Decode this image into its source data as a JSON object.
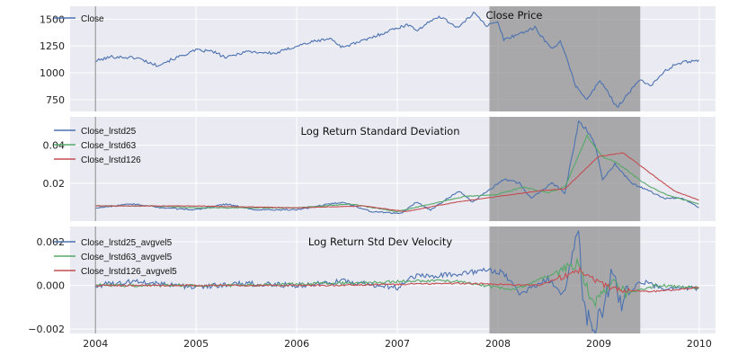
{
  "chart_data": [
    {
      "type": "line",
      "title": "Close Price",
      "x_range": [
        "2003-10-01",
        "2010-03-01"
      ],
      "ylim": [
        640,
        1620
      ],
      "yticks": [
        750,
        1000,
        1250,
        1500
      ],
      "grid": true,
      "legend_position": "top-left",
      "shaded_region": [
        "2007-12-01",
        "2009-06-01"
      ],
      "vline": "2004-01-01",
      "series": [
        {
          "name": "Close",
          "color": "#4C72B0",
          "points": [
            [
              "2004-01-02",
              1110
            ],
            [
              "2004-03-01",
              1150
            ],
            [
              "2004-06-01",
              1140
            ],
            [
              "2004-08-10",
              1070
            ],
            [
              "2004-10-01",
              1120
            ],
            [
              "2004-12-31",
              1210
            ],
            [
              "2005-03-01",
              1200
            ],
            [
              "2005-04-20",
              1140
            ],
            [
              "2005-07-01",
              1200
            ],
            [
              "2005-10-15",
              1180
            ],
            [
              "2005-12-31",
              1250
            ],
            [
              "2006-03-01",
              1290
            ],
            [
              "2006-05-01",
              1320
            ],
            [
              "2006-06-15",
              1240
            ],
            [
              "2006-09-01",
              1300
            ],
            [
              "2006-12-31",
              1420
            ],
            [
              "2007-02-20",
              1450
            ],
            [
              "2007-03-10",
              1390
            ],
            [
              "2007-06-01",
              1530
            ],
            [
              "2007-08-10",
              1420
            ],
            [
              "2007-10-09",
              1565
            ],
            [
              "2007-11-20",
              1440
            ],
            [
              "2007-12-31",
              1470
            ],
            [
              "2008-01-22",
              1310
            ],
            [
              "2008-05-15",
              1420
            ],
            [
              "2008-07-15",
              1220
            ],
            [
              "2008-08-15",
              1300
            ],
            [
              "2008-10-10",
              880
            ],
            [
              "2008-11-20",
              750
            ],
            [
              "2009-01-06",
              930
            ],
            [
              "2009-03-09",
              680
            ],
            [
              "2009-06-01",
              940
            ],
            [
              "2009-07-10",
              880
            ],
            [
              "2009-09-01",
              1020
            ],
            [
              "2009-10-15",
              1090
            ],
            [
              "2009-12-31",
              1120
            ]
          ]
        }
      ]
    },
    {
      "type": "line",
      "title": "Log Return Standard Deviation",
      "x_range": [
        "2003-10-01",
        "2010-03-01"
      ],
      "ylim": [
        0.0,
        0.055
      ],
      "yticks": [
        0.02,
        0.04
      ],
      "grid": true,
      "legend_position": "top-left",
      "shaded_region": [
        "2007-12-01",
        "2009-06-01"
      ],
      "vline": "2004-01-01",
      "series": [
        {
          "name": "Close_lrstd25",
          "color": "#4C72B0",
          "points": [
            [
              "2004-01-02",
              0.007
            ],
            [
              "2004-05-15",
              0.009
            ],
            [
              "2004-09-01",
              0.007
            ],
            [
              "2005-01-01",
              0.006
            ],
            [
              "2005-04-20",
              0.009
            ],
            [
              "2005-08-01",
              0.006
            ],
            [
              "2006-01-01",
              0.006
            ],
            [
              "2006-06-15",
              0.01
            ],
            [
              "2006-10-01",
              0.005
            ],
            [
              "2007-01-15",
              0.004
            ],
            [
              "2007-03-10",
              0.01
            ],
            [
              "2007-05-01",
              0.006
            ],
            [
              "2007-08-15",
              0.016
            ],
            [
              "2007-10-01",
              0.01
            ],
            [
              "2007-11-25",
              0.016
            ],
            [
              "2008-01-25",
              0.022
            ],
            [
              "2008-03-20",
              0.02
            ],
            [
              "2008-05-01",
              0.012
            ],
            [
              "2008-07-15",
              0.02
            ],
            [
              "2008-09-01",
              0.015
            ],
            [
              "2008-10-20",
              0.052
            ],
            [
              "2008-11-20",
              0.048
            ],
            [
              "2008-12-20",
              0.04
            ],
            [
              "2009-01-15",
              0.022
            ],
            [
              "2009-03-01",
              0.03
            ],
            [
              "2009-05-01",
              0.02
            ],
            [
              "2009-07-01",
              0.016
            ],
            [
              "2009-09-01",
              0.012
            ],
            [
              "2009-11-01",
              0.012
            ],
            [
              "2009-12-31",
              0.007
            ]
          ]
        },
        {
          "name": "Close_lrstd63",
          "color": "#55A868",
          "points": [
            [
              "2004-01-02",
              0.008
            ],
            [
              "2004-08-01",
              0.008
            ],
            [
              "2005-01-01",
              0.007
            ],
            [
              "2005-06-01",
              0.007
            ],
            [
              "2006-01-01",
              0.007
            ],
            [
              "2006-07-15",
              0.009
            ],
            [
              "2007-01-01",
              0.005
            ],
            [
              "2007-04-01",
              0.008
            ],
            [
              "2007-09-01",
              0.013
            ],
            [
              "2007-12-31",
              0.014
            ],
            [
              "2008-04-01",
              0.018
            ],
            [
              "2008-07-01",
              0.015
            ],
            [
              "2008-09-01",
              0.018
            ],
            [
              "2008-11-20",
              0.045
            ],
            [
              "2009-01-15",
              0.034
            ],
            [
              "2009-03-15",
              0.03
            ],
            [
              "2009-06-15",
              0.02
            ],
            [
              "2009-09-01",
              0.014
            ],
            [
              "2009-12-31",
              0.009
            ]
          ]
        },
        {
          "name": "Close_lrstd126",
          "color": "#C44E52",
          "points": [
            [
              "2004-01-02",
              0.008
            ],
            [
              "2004-12-31",
              0.008
            ],
            [
              "2005-12-31",
              0.007
            ],
            [
              "2006-09-01",
              0.008
            ],
            [
              "2007-02-01",
              0.005
            ],
            [
              "2007-08-01",
              0.01
            ],
            [
              "2007-12-31",
              0.013
            ],
            [
              "2008-06-01",
              0.016
            ],
            [
              "2008-09-01",
              0.017
            ],
            [
              "2008-12-31",
              0.034
            ],
            [
              "2009-04-01",
              0.036
            ],
            [
              "2009-07-01",
              0.026
            ],
            [
              "2009-10-01",
              0.016
            ],
            [
              "2009-12-31",
              0.011
            ]
          ]
        }
      ]
    },
    {
      "type": "line",
      "title": "Log Return Std Dev Velocity",
      "x_range": [
        "2003-10-01",
        "2010-03-01"
      ],
      "ylim": [
        -0.0022,
        0.0027
      ],
      "yticks": [
        -0.002,
        0.0,
        0.002
      ],
      "xticks": [
        "2004",
        "2005",
        "2006",
        "2007",
        "2008",
        "2009",
        "2010"
      ],
      "grid": true,
      "legend_position": "top-left",
      "shaded_region": [
        "2007-12-01",
        "2009-06-01"
      ],
      "vline": "2004-01-01",
      "series": [
        {
          "name": "Close_lrstd25_avgvel5",
          "color": "#4C72B0",
          "points": [
            [
              "2004-01-02",
              0.0
            ],
            [
              "2004-06-01",
              0.0002
            ],
            [
              "2005-01-01",
              -0.0001
            ],
            [
              "2005-06-01",
              0.0001
            ],
            [
              "2006-01-01",
              0.0
            ],
            [
              "2006-06-15",
              0.0002
            ],
            [
              "2007-01-01",
              -0.0001
            ],
            [
              "2007-03-01",
              0.0004
            ],
            [
              "2007-08-01",
              0.0005
            ],
            [
              "2007-11-15",
              0.0007
            ],
            [
              "2008-01-20",
              0.0006
            ],
            [
              "2008-03-20",
              -0.0004
            ],
            [
              "2008-07-01",
              0.0003
            ],
            [
              "2008-09-01",
              -0.0005
            ],
            [
              "2008-10-20",
              0.0024
            ],
            [
              "2008-11-10",
              -0.0012
            ],
            [
              "2008-12-15",
              -0.0019
            ],
            [
              "2009-01-05",
              -0.0015
            ],
            [
              "2009-02-20",
              0.0006
            ],
            [
              "2009-03-20",
              -0.0008
            ],
            [
              "2009-06-01",
              0.0002
            ],
            [
              "2009-09-01",
              -0.0002
            ],
            [
              "2009-12-31",
              -0.0001
            ]
          ]
        },
        {
          "name": "Close_lrstd63_avgvel5",
          "color": "#55A868",
          "points": [
            [
              "2004-01-02",
              0.0
            ],
            [
              "2005-06-01",
              0.0
            ],
            [
              "2006-06-01",
              0.0001
            ],
            [
              "2007-03-01",
              0.0002
            ],
            [
              "2007-08-01",
              0.0002
            ],
            [
              "2008-03-01",
              -0.0002
            ],
            [
              "2008-10-20",
              0.001
            ],
            [
              "2008-12-15",
              -0.0009
            ],
            [
              "2009-02-20",
              0.0002
            ],
            [
              "2009-04-15",
              -0.0004
            ],
            [
              "2009-08-01",
              0.0
            ],
            [
              "2009-12-31",
              -0.0001
            ]
          ]
        },
        {
          "name": "Close_lrstd126_avgvel5",
          "color": "#C44E52",
          "points": [
            [
              "2004-01-02",
              0.0
            ],
            [
              "2006-06-01",
              0.0
            ],
            [
              "2007-08-01",
              0.0001
            ],
            [
              "2008-06-01",
              0.0
            ],
            [
              "2008-10-20",
              0.0007
            ],
            [
              "2008-12-20",
              0.0002
            ],
            [
              "2009-03-15",
              -0.0002
            ],
            [
              "2009-07-01",
              -0.0003
            ],
            [
              "2009-12-31",
              -0.0001
            ]
          ]
        }
      ]
    }
  ]
}
